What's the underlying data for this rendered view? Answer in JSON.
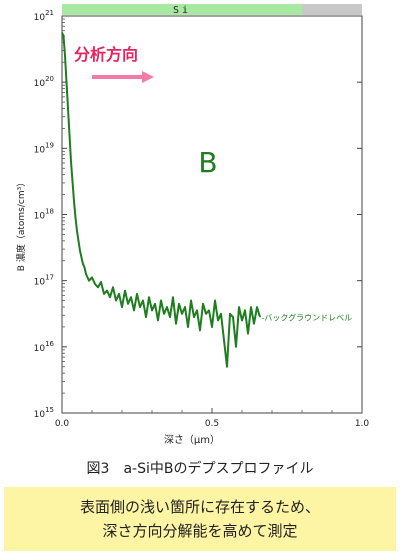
{
  "chart_data": {
    "type": "line",
    "title": "",
    "xlabel": "深さ（μm）",
    "ylabel": "B 濃度（atoms/cm³）",
    "xlim": [
      0,
      1.0
    ],
    "ylim_log10": [
      15,
      21
    ],
    "y_scale": "log",
    "x_ticks": [
      {
        "value": 0,
        "label": "0.0"
      },
      {
        "value": 0.5,
        "label": "0.5"
      },
      {
        "value": 1.0,
        "label": "1.0"
      }
    ],
    "y_ticks": [
      {
        "exp": 15,
        "base": "10",
        "sup": "15"
      },
      {
        "exp": 16,
        "base": "10",
        "sup": "16"
      },
      {
        "exp": 17,
        "base": "10",
        "sup": "17"
      },
      {
        "exp": 18,
        "base": "10",
        "sup": "18"
      },
      {
        "exp": 19,
        "base": "10",
        "sup": "19"
      },
      {
        "exp": 20,
        "base": "10",
        "sup": "20"
      },
      {
        "exp": 21,
        "base": "10",
        "sup": "21"
      }
    ],
    "region_bar": {
      "label": "Si",
      "x_end": 0.8,
      "color": "#a9e8a2",
      "rest_color": "#c8c8c8"
    },
    "series": [
      {
        "name": "B",
        "color": "#1e7d1e",
        "x": [
          0.0,
          0.005,
          0.01,
          0.015,
          0.02,
          0.025,
          0.03,
          0.035,
          0.04,
          0.045,
          0.05,
          0.055,
          0.06,
          0.065,
          0.07,
          0.075,
          0.08,
          0.09,
          0.1,
          0.11,
          0.12,
          0.13,
          0.14,
          0.15,
          0.16,
          0.17,
          0.18,
          0.19,
          0.2,
          0.21,
          0.22,
          0.23,
          0.24,
          0.25,
          0.26,
          0.27,
          0.28,
          0.29,
          0.3,
          0.31,
          0.32,
          0.33,
          0.34,
          0.35,
          0.36,
          0.37,
          0.38,
          0.39,
          0.4,
          0.41,
          0.42,
          0.43,
          0.44,
          0.45,
          0.46,
          0.47,
          0.48,
          0.49,
          0.5,
          0.51,
          0.52,
          0.53,
          0.54,
          0.55,
          0.56,
          0.57,
          0.58,
          0.59,
          0.6,
          0.61,
          0.62,
          0.63,
          0.64,
          0.65,
          0.66
        ],
        "y_log10": [
          20.75,
          20.7,
          20.4,
          20.0,
          19.6,
          19.2,
          18.8,
          18.5,
          18.2,
          17.95,
          17.75,
          17.6,
          17.45,
          17.35,
          17.25,
          17.2,
          17.1,
          17.0,
          17.05,
          16.95,
          16.9,
          16.98,
          16.8,
          16.85,
          16.75,
          16.9,
          16.7,
          16.8,
          16.6,
          16.85,
          16.65,
          16.75,
          16.55,
          16.8,
          16.6,
          16.7,
          16.45,
          16.75,
          16.55,
          16.65,
          16.4,
          16.7,
          16.5,
          16.6,
          16.45,
          16.75,
          16.35,
          16.65,
          16.5,
          16.6,
          16.3,
          16.7,
          16.45,
          16.55,
          16.25,
          16.65,
          16.5,
          16.55,
          16.3,
          16.7,
          16.4,
          16.5,
          16.1,
          15.7,
          16.5,
          16.45,
          16.0,
          16.6,
          16.4,
          16.55,
          16.2,
          16.6,
          16.35,
          16.6,
          16.45
        ]
      }
    ],
    "annotations": {
      "element_label": "B",
      "direction_label": "分析方向",
      "background_label": "-バックグラウンドレベル"
    }
  },
  "caption": "図3　a-Si中Bのデプスプロファイル",
  "note": {
    "line1": "表面側の浅い箇所に存在するため、",
    "line2": "深さ方向分解能を高めて測定"
  },
  "colors": {
    "series": "#1e7d1e",
    "direction_text": "#e8255f",
    "direction_arrow": "#f47aa8",
    "note_bg": "#fdf4a4"
  }
}
